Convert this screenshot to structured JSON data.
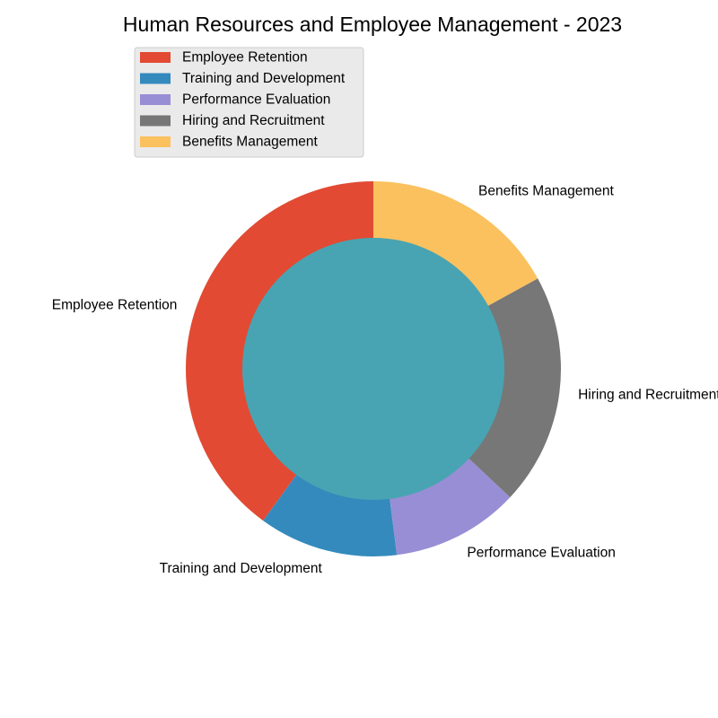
{
  "chart_data": {
    "type": "pie",
    "style": "donut",
    "title": "Human Resources and Employee Management - 2023",
    "categories": [
      "Employee Retention",
      "Training and Development",
      "Performance Evaluation",
      "Hiring and Recruitment",
      "Benefits Management"
    ],
    "values": [
      40,
      12,
      11,
      20,
      17
    ],
    "colors": [
      "#E24A33",
      "#348ABD",
      "#988ED5",
      "#777777",
      "#FBC15E"
    ],
    "center_color": "#48A4B2",
    "start_angle_deg": 90,
    "direction": "counterclockwise",
    "legend": {
      "position": "top-left",
      "entries": [
        "Employee Retention",
        "Training and Development",
        "Performance Evaluation",
        "Hiring and Recruitment",
        "Benefits Management"
      ]
    }
  }
}
